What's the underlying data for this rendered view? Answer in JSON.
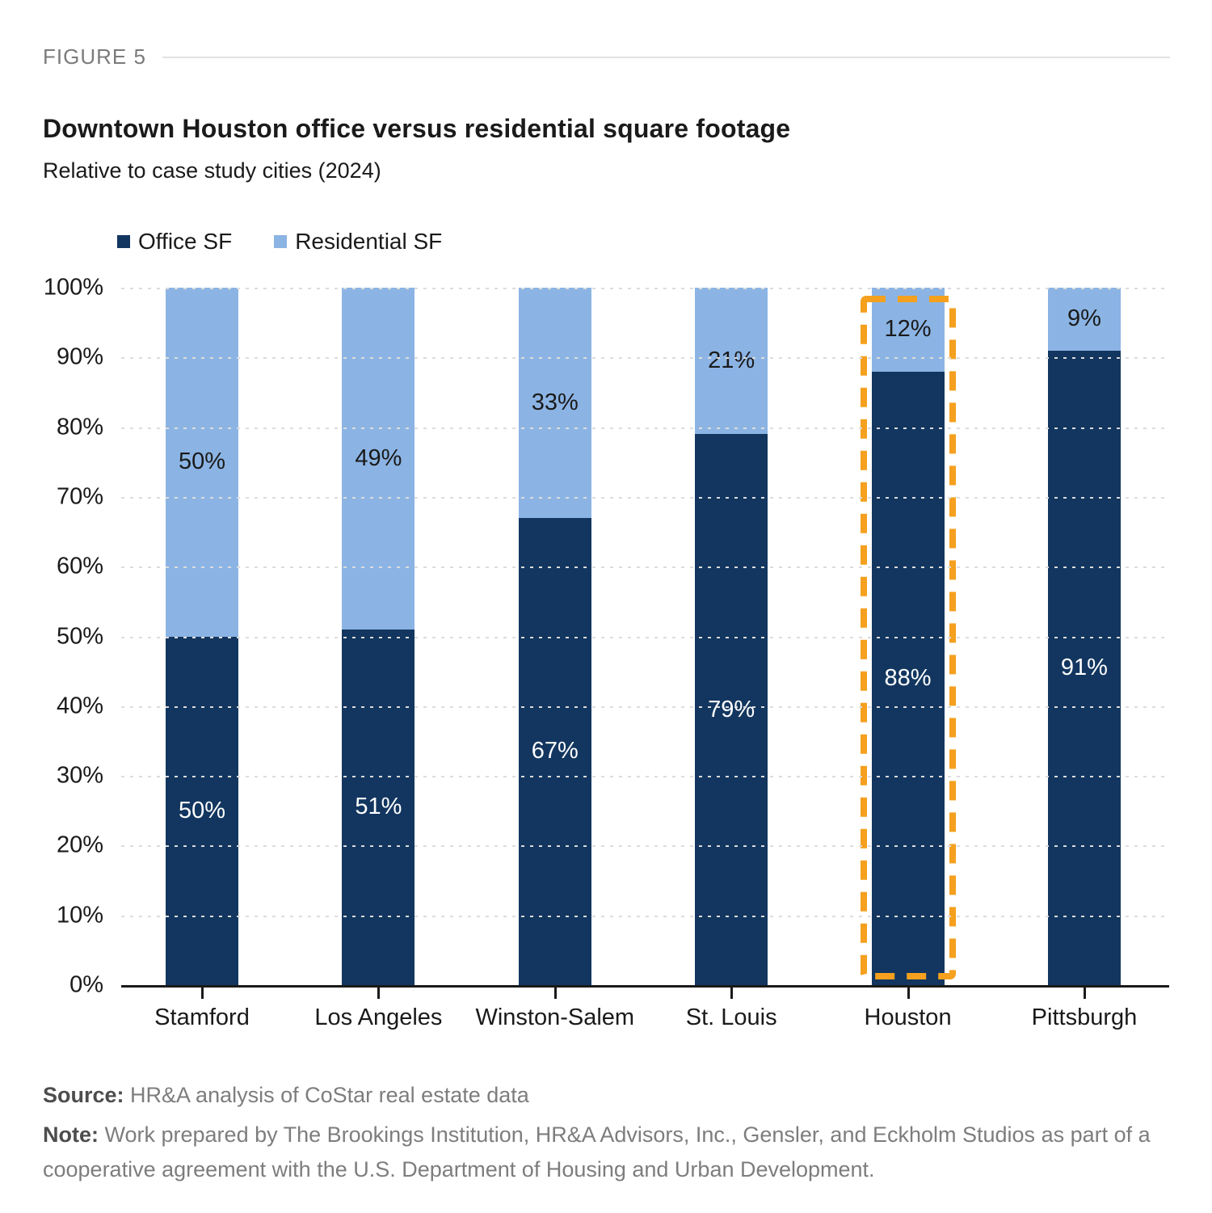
{
  "figure_label": "FIGURE 5",
  "title": "Downtown Houston office versus residential square footage",
  "subtitle": "Relative to case study cities (2024)",
  "colors": {
    "office": "#12365F",
    "residential": "#8BB4E4",
    "highlight": "#F5A01E",
    "axis": "#1a1a1a",
    "gridline": "#dcdcdc"
  },
  "legend": [
    {
      "label": "Office SF",
      "color": "#12365F"
    },
    {
      "label": "Residential SF",
      "color": "#8BB4E4"
    }
  ],
  "chart_data": {
    "type": "bar",
    "stacked": true,
    "categories": [
      "Stamford",
      "Los Angeles",
      "Winston-Salem",
      "St. Louis",
      "Houston",
      "Pittsburgh"
    ],
    "series": [
      {
        "name": "Office SF",
        "color": "#12365F",
        "values": [
          50,
          51,
          67,
          79,
          88,
          91
        ]
      },
      {
        "name": "Residential SF",
        "color": "#8BB4E4",
        "values": [
          50,
          49,
          33,
          21,
          12,
          9
        ]
      }
    ],
    "value_suffix": "%",
    "y_ticks": [
      100,
      90,
      80,
      70,
      60,
      50,
      40,
      30,
      20,
      10,
      0
    ],
    "tick_suffix": "%",
    "ylim": [
      0,
      100
    ],
    "grid": "dotted-horizontal",
    "legend_position": "top-left",
    "highlight": {
      "category": "Houston",
      "color": "#F5A01E",
      "style": "dashed-box"
    }
  },
  "source": {
    "label": "Source:",
    "text": " HR&A analysis of CoStar real estate data"
  },
  "note": {
    "label": "Note:",
    "text": " Work prepared by The Brookings Institution, HR&A Advisors, Inc., Gensler, and Eckholm Studios as part of a cooperative agreement with the U.S. Department of Housing and Urban Development."
  }
}
